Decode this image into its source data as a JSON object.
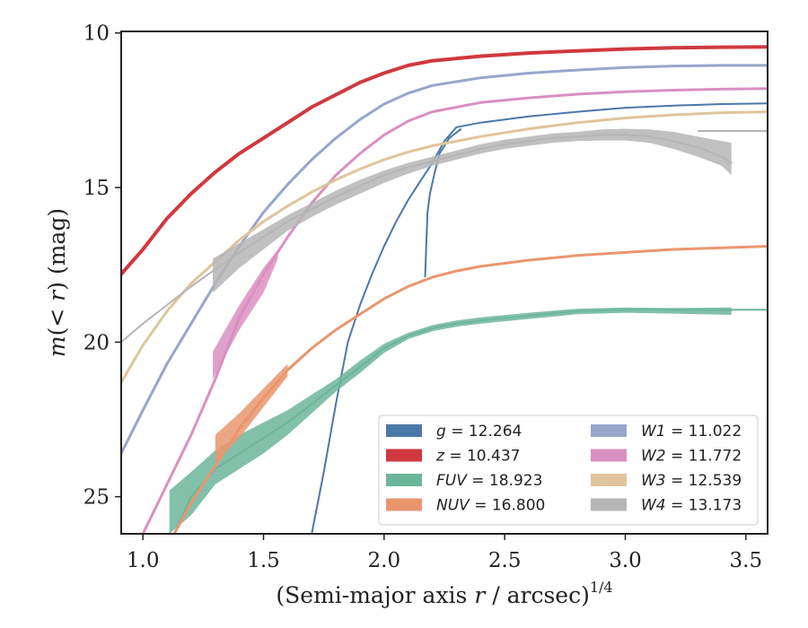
{
  "chart_data": {
    "type": "line",
    "xlabel_main": "(Semi-major axis ",
    "xlabel_var": "r",
    "xlabel_tail": " / arcsec)",
    "xlabel_sup": "1/4",
    "ylabel_main": "m",
    "ylabel_inner": "(< ",
    "ylabel_var": "r",
    "ylabel_tail": ") (mag)",
    "xlim": [
      0.91,
      3.59
    ],
    "ylim": [
      26.2,
      9.95
    ],
    "y_inverted": true,
    "grid": false,
    "legend_position": "lower-right",
    "xticks": [
      "1.0",
      "1.5",
      "2.0",
      "2.5",
      "3.0",
      "3.5"
    ],
    "yticks": [
      "10",
      "15",
      "20",
      "25"
    ],
    "series": [
      {
        "name": "g = 12.264",
        "color": "#4c78a8",
        "width": 2,
        "points": [
          [
            1.7,
            26.2
          ],
          [
            1.75,
            24.2
          ],
          [
            1.8,
            22.0
          ],
          [
            1.85,
            20.0
          ],
          [
            1.9,
            18.8
          ],
          [
            1.95,
            17.8
          ],
          [
            2.0,
            16.9
          ],
          [
            2.05,
            16.1
          ],
          [
            2.1,
            15.4
          ],
          [
            2.15,
            14.8
          ],
          [
            2.2,
            14.2
          ],
          [
            2.25,
            13.5
          ],
          [
            2.3,
            13.05
          ],
          [
            2.4,
            12.9
          ],
          [
            2.6,
            12.7
          ],
          [
            2.8,
            12.55
          ],
          [
            3.0,
            12.42
          ],
          [
            3.2,
            12.35
          ],
          [
            3.4,
            12.3
          ],
          [
            3.59,
            12.28
          ]
        ],
        "extra": [
          [
            2.17,
            17.9
          ],
          [
            2.175,
            16.8
          ],
          [
            2.18,
            15.8
          ],
          [
            2.19,
            15.2
          ],
          [
            2.21,
            14.5
          ],
          [
            2.23,
            13.9
          ],
          [
            2.27,
            13.4
          ],
          [
            2.32,
            13.1
          ]
        ]
      },
      {
        "name": "z = 10.437",
        "color": "#d0393f",
        "width": 4,
        "points": [
          [
            0.91,
            17.8
          ],
          [
            1.0,
            17.0
          ],
          [
            1.1,
            16.0
          ],
          [
            1.2,
            15.2
          ],
          [
            1.3,
            14.5
          ],
          [
            1.4,
            13.9
          ],
          [
            1.5,
            13.4
          ],
          [
            1.6,
            12.9
          ],
          [
            1.7,
            12.4
          ],
          [
            1.8,
            12.0
          ],
          [
            1.9,
            11.6
          ],
          [
            2.0,
            11.3
          ],
          [
            2.1,
            11.05
          ],
          [
            2.2,
            10.9
          ],
          [
            2.4,
            10.75
          ],
          [
            2.6,
            10.65
          ],
          [
            2.8,
            10.58
          ],
          [
            3.0,
            10.52
          ],
          [
            3.2,
            10.48
          ],
          [
            3.4,
            10.46
          ],
          [
            3.59,
            10.45
          ]
        ]
      },
      {
        "name": "FUV = 18.923",
        "color": "#6cb59b",
        "width": 2,
        "points": [
          [
            1.13,
            26.2
          ],
          [
            1.2,
            25.0
          ],
          [
            1.3,
            24.1
          ],
          [
            1.4,
            23.6
          ],
          [
            1.5,
            23.1
          ],
          [
            1.6,
            22.6
          ],
          [
            1.7,
            22.0
          ],
          [
            1.8,
            21.4
          ],
          [
            1.9,
            20.8
          ],
          [
            2.0,
            20.2
          ],
          [
            2.1,
            19.8
          ],
          [
            2.2,
            19.55
          ],
          [
            2.3,
            19.4
          ],
          [
            2.4,
            19.3
          ],
          [
            2.6,
            19.15
          ],
          [
            2.8,
            19.0
          ],
          [
            3.0,
            18.95
          ],
          [
            3.2,
            18.95
          ],
          [
            3.44,
            18.97
          ]
        ],
        "upper": [
          [
            1.11,
            24.8
          ],
          [
            1.2,
            24.2
          ],
          [
            1.3,
            23.5
          ],
          [
            1.4,
            23.0
          ],
          [
            1.5,
            22.6
          ],
          [
            1.6,
            22.2
          ],
          [
            1.7,
            21.7
          ],
          [
            1.8,
            21.2
          ],
          [
            1.9,
            20.6
          ],
          [
            2.0,
            20.05
          ],
          [
            2.1,
            19.7
          ],
          [
            2.2,
            19.45
          ],
          [
            2.3,
            19.3
          ],
          [
            2.4,
            19.2
          ],
          [
            2.6,
            19.05
          ],
          [
            2.8,
            18.92
          ],
          [
            3.0,
            18.88
          ],
          [
            3.2,
            18.9
          ],
          [
            3.44,
            18.88
          ]
        ],
        "lower": [
          [
            1.11,
            26.2
          ],
          [
            1.2,
            25.6
          ],
          [
            1.3,
            24.6
          ],
          [
            1.4,
            24.1
          ],
          [
            1.5,
            23.6
          ],
          [
            1.6,
            23.0
          ],
          [
            1.7,
            22.3
          ],
          [
            1.8,
            21.6
          ],
          [
            1.9,
            21.0
          ],
          [
            2.0,
            20.35
          ],
          [
            2.1,
            19.9
          ],
          [
            2.2,
            19.65
          ],
          [
            2.3,
            19.5
          ],
          [
            2.4,
            19.4
          ],
          [
            2.6,
            19.25
          ],
          [
            2.8,
            19.1
          ],
          [
            3.0,
            19.05
          ],
          [
            3.2,
            19.08
          ],
          [
            3.44,
            19.12
          ]
        ],
        "extra": [
          [
            3.44,
            18.95
          ],
          [
            3.59,
            18.95
          ]
        ]
      },
      {
        "name": "NUV = 16.800",
        "color": "#e9966f",
        "width": 3,
        "points": [
          [
            1.13,
            26.2
          ],
          [
            1.2,
            25.2
          ],
          [
            1.3,
            24.0
          ],
          [
            1.4,
            22.8
          ],
          [
            1.5,
            21.8
          ],
          [
            1.6,
            20.9
          ],
          [
            1.7,
            20.2
          ],
          [
            1.8,
            19.6
          ],
          [
            1.9,
            19.1
          ],
          [
            2.0,
            18.6
          ],
          [
            2.1,
            18.2
          ],
          [
            2.2,
            17.9
          ],
          [
            2.3,
            17.7
          ],
          [
            2.4,
            17.55
          ],
          [
            2.6,
            17.35
          ],
          [
            2.8,
            17.2
          ],
          [
            3.0,
            17.1
          ],
          [
            3.2,
            17.0
          ],
          [
            3.4,
            16.95
          ],
          [
            3.59,
            16.9
          ]
        ],
        "upper": [
          [
            1.3,
            23.0
          ],
          [
            1.4,
            22.3
          ],
          [
            1.5,
            21.5
          ],
          [
            1.6,
            20.7
          ]
        ],
        "lower": [
          [
            1.3,
            23.9
          ],
          [
            1.4,
            23.1
          ],
          [
            1.5,
            22.1
          ],
          [
            1.6,
            21.1
          ]
        ]
      },
      {
        "name": "W1 = 11.022",
        "color": "#98a6cc",
        "width": 3,
        "points": [
          [
            0.91,
            23.6
          ],
          [
            1.0,
            22.2
          ],
          [
            1.1,
            20.7
          ],
          [
            1.2,
            19.4
          ],
          [
            1.3,
            18.1
          ],
          [
            1.4,
            16.9
          ],
          [
            1.5,
            15.8
          ],
          [
            1.6,
            14.9
          ],
          [
            1.7,
            14.1
          ],
          [
            1.8,
            13.4
          ],
          [
            1.9,
            12.8
          ],
          [
            2.0,
            12.3
          ],
          [
            2.1,
            11.95
          ],
          [
            2.2,
            11.7
          ],
          [
            2.4,
            11.45
          ],
          [
            2.6,
            11.3
          ],
          [
            2.8,
            11.2
          ],
          [
            3.0,
            11.12
          ],
          [
            3.2,
            11.07
          ],
          [
            3.4,
            11.05
          ],
          [
            3.59,
            11.05
          ]
        ]
      },
      {
        "name": "W2 = 11.772",
        "color": "#d990c1",
        "width": 3,
        "points": [
          [
            1.0,
            26.2
          ],
          [
            1.1,
            24.6
          ],
          [
            1.2,
            23.0
          ],
          [
            1.3,
            21.2
          ],
          [
            1.4,
            19.2
          ],
          [
            1.5,
            17.8
          ],
          [
            1.6,
            16.6
          ],
          [
            1.7,
            15.5
          ],
          [
            1.8,
            14.6
          ],
          [
            1.9,
            13.9
          ],
          [
            2.0,
            13.3
          ],
          [
            2.1,
            12.85
          ],
          [
            2.2,
            12.55
          ],
          [
            2.4,
            12.25
          ],
          [
            2.6,
            12.1
          ],
          [
            2.8,
            11.98
          ],
          [
            3.0,
            11.9
          ],
          [
            3.2,
            11.85
          ],
          [
            3.4,
            11.82
          ],
          [
            3.59,
            11.8
          ]
        ],
        "upper": [
          [
            1.29,
            20.3
          ],
          [
            1.4,
            18.8
          ],
          [
            1.5,
            17.6
          ],
          [
            1.56,
            17.0
          ]
        ],
        "lower": [
          [
            1.29,
            21.2
          ],
          [
            1.4,
            19.6
          ],
          [
            1.5,
            18.4
          ],
          [
            1.56,
            17.3
          ]
        ]
      },
      {
        "name": "W3 = 12.539",
        "color": "#dfc59b",
        "width": 3,
        "points": [
          [
            0.91,
            21.3
          ],
          [
            1.0,
            20.1
          ],
          [
            1.1,
            19.0
          ],
          [
            1.2,
            18.1
          ],
          [
            1.3,
            17.4
          ],
          [
            1.4,
            16.7
          ],
          [
            1.5,
            16.1
          ],
          [
            1.6,
            15.6
          ],
          [
            1.7,
            15.15
          ],
          [
            1.8,
            14.75
          ],
          [
            1.9,
            14.4
          ],
          [
            2.0,
            14.1
          ],
          [
            2.1,
            13.85
          ],
          [
            2.2,
            13.65
          ],
          [
            2.4,
            13.35
          ],
          [
            2.6,
            13.1
          ],
          [
            2.8,
            12.9
          ],
          [
            3.0,
            12.75
          ],
          [
            3.2,
            12.65
          ],
          [
            3.4,
            12.58
          ],
          [
            3.59,
            12.55
          ]
        ]
      },
      {
        "name": "W4 = 13.173",
        "color": "#b5b5b5",
        "width": 2,
        "points": [
          [
            0.91,
            20.0
          ],
          [
            1.0,
            19.4
          ],
          [
            1.1,
            18.8
          ],
          [
            1.2,
            18.2
          ],
          [
            1.29,
            17.7
          ],
          [
            1.4,
            17.1
          ],
          [
            1.5,
            16.6
          ],
          [
            1.6,
            16.1
          ],
          [
            1.7,
            15.7
          ],
          [
            1.8,
            15.3
          ],
          [
            1.9,
            14.95
          ],
          [
            2.0,
            14.6
          ],
          [
            2.1,
            14.35
          ],
          [
            2.2,
            14.15
          ],
          [
            2.3,
            13.95
          ],
          [
            2.4,
            13.75
          ],
          [
            2.5,
            13.6
          ],
          [
            2.6,
            13.5
          ],
          [
            2.7,
            13.4
          ],
          [
            2.8,
            13.35
          ],
          [
            2.9,
            13.3
          ],
          [
            3.0,
            13.3
          ],
          [
            3.1,
            13.35
          ],
          [
            3.2,
            13.5
          ],
          [
            3.3,
            13.7
          ],
          [
            3.4,
            14.0
          ],
          [
            3.44,
            14.2
          ]
        ],
        "upper": [
          [
            1.29,
            17.3
          ],
          [
            1.4,
            16.8
          ],
          [
            1.5,
            16.35
          ],
          [
            1.6,
            15.9
          ],
          [
            1.7,
            15.5
          ],
          [
            1.8,
            15.1
          ],
          [
            1.9,
            14.75
          ],
          [
            2.0,
            14.45
          ],
          [
            2.1,
            14.2
          ],
          [
            2.2,
            14.0
          ],
          [
            2.3,
            13.8
          ],
          [
            2.4,
            13.6
          ],
          [
            2.5,
            13.45
          ],
          [
            2.6,
            13.35
          ],
          [
            2.7,
            13.25
          ],
          [
            2.8,
            13.2
          ],
          [
            2.9,
            13.12
          ],
          [
            3.0,
            13.1
          ],
          [
            3.1,
            13.12
          ],
          [
            3.2,
            13.2
          ],
          [
            3.3,
            13.35
          ],
          [
            3.4,
            13.5
          ],
          [
            3.44,
            13.55
          ]
        ],
        "lower": [
          [
            1.29,
            18.4
          ],
          [
            1.4,
            17.6
          ],
          [
            1.5,
            17.0
          ],
          [
            1.6,
            16.4
          ],
          [
            1.7,
            15.95
          ],
          [
            1.8,
            15.55
          ],
          [
            1.9,
            15.2
          ],
          [
            2.0,
            14.85
          ],
          [
            2.1,
            14.55
          ],
          [
            2.2,
            14.3
          ],
          [
            2.3,
            14.1
          ],
          [
            2.4,
            13.9
          ],
          [
            2.5,
            13.75
          ],
          [
            2.6,
            13.65
          ],
          [
            2.7,
            13.55
          ],
          [
            2.8,
            13.5
          ],
          [
            2.9,
            13.48
          ],
          [
            3.0,
            13.48
          ],
          [
            3.1,
            13.55
          ],
          [
            3.2,
            13.75
          ],
          [
            3.3,
            14.0
          ],
          [
            3.4,
            14.3
          ],
          [
            3.44,
            14.6
          ]
        ],
        "extra": [
          [
            3.3,
            13.17
          ],
          [
            3.59,
            13.17
          ]
        ]
      }
    ],
    "legend": {
      "col1": [
        {
          "var": "g",
          "eq": " = 12.264",
          "color": "#4c78a8"
        },
        {
          "var": "z",
          "eq": " = 10.437",
          "color": "#d0393f"
        },
        {
          "var": "FUV",
          "eq": " = 18.923",
          "color": "#6cb59b"
        },
        {
          "var": "NUV",
          "eq": " = 16.800",
          "color": "#e9966f"
        }
      ],
      "col2": [
        {
          "var": "W1",
          "eq": " = 11.022",
          "color": "#98a6cc"
        },
        {
          "var": "W2",
          "eq": " = 11.772",
          "color": "#d990c1"
        },
        {
          "var": "W3",
          "eq": " = 12.539",
          "color": "#dfc59b"
        },
        {
          "var": "W4",
          "eq": " = 13.173",
          "color": "#b5b5b5"
        }
      ]
    }
  }
}
